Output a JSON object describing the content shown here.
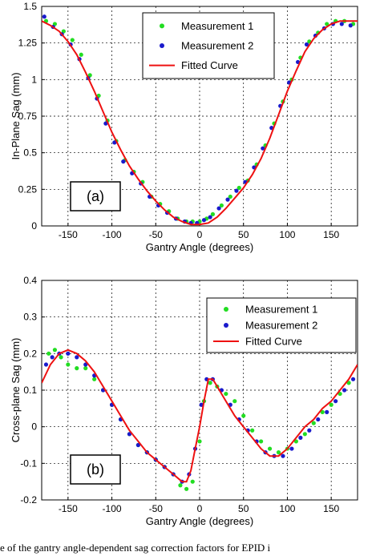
{
  "chart_data": [
    {
      "type": "scatter",
      "panel_label": "(a)",
      "xlabel": "Gantry Angle (degrees)",
      "ylabel": "In-Plane Sag (mm)",
      "xlim": [
        -180,
        180
      ],
      "ylim": [
        0,
        1.5
      ],
      "xticks": [
        -150,
        -100,
        -50,
        0,
        50,
        100,
        150
      ],
      "xtick_labels": [
        "-150",
        "-100",
        "-50",
        "0",
        "50",
        "100",
        "150"
      ],
      "yticks": [
        0,
        0.25,
        0.5,
        0.75,
        1,
        1.25,
        1.5
      ],
      "ytick_labels": [
        "0",
        "0.25",
        "0.5",
        "0.75",
        "1",
        "1.25",
        "1.5"
      ],
      "grid": true,
      "legend_position": "top-right",
      "series": [
        {
          "name": "Measurement 1",
          "color": "#22dd22",
          "marker": "dot",
          "x": [
            -175,
            -165,
            -155,
            -145,
            -135,
            -125,
            -115,
            -105,
            -95,
            -85,
            -75,
            -65,
            -55,
            -45,
            -35,
            -25,
            -15,
            -8,
            0,
            8,
            15,
            25,
            35,
            45,
            55,
            65,
            75,
            85,
            95,
            105,
            115,
            125,
            135,
            145,
            155,
            165,
            175
          ],
          "y": [
            1.4,
            1.38,
            1.33,
            1.27,
            1.17,
            1.03,
            0.89,
            0.72,
            0.58,
            0.45,
            0.37,
            0.3,
            0.2,
            0.15,
            0.1,
            0.05,
            0.03,
            0.03,
            0.03,
            0.05,
            0.08,
            0.14,
            0.2,
            0.26,
            0.31,
            0.42,
            0.55,
            0.7,
            0.85,
            1.0,
            1.15,
            1.26,
            1.32,
            1.38,
            1.4,
            1.4,
            1.38
          ]
        },
        {
          "name": "Measurement 2",
          "color": "#1a1acc",
          "marker": "dot",
          "x": [
            -177,
            -167,
            -157,
            -147,
            -137,
            -127,
            -117,
            -107,
            -97,
            -87,
            -77,
            -67,
            -57,
            -47,
            -37,
            -27,
            -17,
            -10,
            -3,
            5,
            12,
            22,
            32,
            42,
            52,
            62,
            72,
            82,
            92,
            102,
            112,
            122,
            132,
            142,
            152,
            162,
            172
          ],
          "y": [
            1.43,
            1.36,
            1.31,
            1.24,
            1.14,
            1.01,
            0.87,
            0.7,
            0.57,
            0.44,
            0.36,
            0.29,
            0.2,
            0.14,
            0.09,
            0.05,
            0.03,
            0.02,
            0.02,
            0.04,
            0.06,
            0.12,
            0.18,
            0.24,
            0.3,
            0.4,
            0.53,
            0.67,
            0.82,
            0.98,
            1.12,
            1.24,
            1.3,
            1.35,
            1.38,
            1.38,
            1.37
          ]
        },
        {
          "name": "Fitted Curve",
          "color": "#ee1111",
          "marker": "line",
          "x": [
            -180,
            -170,
            -160,
            -150,
            -140,
            -130,
            -120,
            -110,
            -100,
            -90,
            -80,
            -70,
            -60,
            -50,
            -40,
            -30,
            -20,
            -10,
            0,
            10,
            20,
            30,
            40,
            50,
            60,
            70,
            80,
            90,
            100,
            110,
            120,
            130,
            140,
            150,
            160,
            170,
            180
          ],
          "y": [
            1.4,
            1.37,
            1.33,
            1.26,
            1.17,
            1.05,
            0.92,
            0.78,
            0.64,
            0.52,
            0.41,
            0.32,
            0.24,
            0.17,
            0.11,
            0.06,
            0.03,
            0.01,
            0.01,
            0.02,
            0.06,
            0.12,
            0.19,
            0.26,
            0.35,
            0.46,
            0.6,
            0.76,
            0.92,
            1.06,
            1.19,
            1.28,
            1.34,
            1.38,
            1.4,
            1.4,
            1.4
          ]
        }
      ]
    },
    {
      "type": "scatter",
      "panel_label": "(b)",
      "xlabel": "Gantry Angle (degrees)",
      "ylabel": "Cross-plane Sag (mm)",
      "xlim": [
        -180,
        180
      ],
      "ylim": [
        -0.2,
        0.4
      ],
      "xticks": [
        -150,
        -100,
        -50,
        0,
        50,
        100,
        150
      ],
      "xtick_labels": [
        "-150",
        "-100",
        "-50",
        "0",
        "50",
        "100",
        "150"
      ],
      "yticks": [
        -0.2,
        -0.1,
        0,
        0.1,
        0.2,
        0.3,
        0.4
      ],
      "ytick_labels": [
        "-0.2",
        "-0.1",
        "0",
        "0.1",
        "0.2",
        "0.3",
        "0.4"
      ],
      "grid": true,
      "legend_position": "top-right",
      "series": [
        {
          "name": "Measurement 1",
          "color": "#22dd22",
          "marker": "dot",
          "x": [
            -172,
            -165,
            -158,
            -150,
            -140,
            -130,
            -120,
            -110,
            -100,
            -90,
            -80,
            -70,
            -60,
            -50,
            -40,
            -30,
            -22,
            -15,
            -8,
            0,
            5,
            12,
            20,
            30,
            40,
            50,
            60,
            70,
            80,
            90,
            100,
            110,
            120,
            130,
            140,
            150,
            160,
            170
          ],
          "y": [
            0.2,
            0.21,
            0.19,
            0.17,
            0.16,
            0.16,
            0.13,
            0.1,
            0.06,
            0.02,
            -0.02,
            -0.05,
            -0.07,
            -0.09,
            -0.11,
            -0.13,
            -0.16,
            -0.17,
            -0.15,
            -0.04,
            0.07,
            0.12,
            0.11,
            0.09,
            0.07,
            0.03,
            -0.01,
            -0.04,
            -0.06,
            -0.07,
            -0.06,
            -0.04,
            -0.02,
            0.01,
            0.04,
            0.06,
            0.09,
            0.12
          ]
        },
        {
          "name": "Measurement 2",
          "color": "#1a1acc",
          "marker": "dot",
          "x": [
            -175,
            -168,
            -160,
            -150,
            -140,
            -130,
            -120,
            -110,
            -100,
            -90,
            -80,
            -70,
            -60,
            -50,
            -40,
            -30,
            -20,
            -12,
            -5,
            2,
            8,
            15,
            25,
            35,
            45,
            55,
            65,
            75,
            85,
            95,
            105,
            115,
            125,
            135,
            145,
            155,
            165,
            175
          ],
          "y": [
            0.17,
            0.19,
            0.2,
            0.2,
            0.19,
            0.17,
            0.14,
            0.1,
            0.06,
            0.02,
            -0.02,
            -0.05,
            -0.07,
            -0.09,
            -0.11,
            -0.13,
            -0.15,
            -0.13,
            -0.06,
            0.06,
            0.13,
            0.13,
            0.1,
            0.06,
            0.02,
            -0.01,
            -0.04,
            -0.07,
            -0.08,
            -0.08,
            -0.06,
            -0.03,
            -0.01,
            0.02,
            0.04,
            0.07,
            0.1,
            0.13
          ]
        },
        {
          "name": "Fitted Curve",
          "color": "#ee1111",
          "marker": "line",
          "x": [
            -180,
            -170,
            -160,
            -150,
            -140,
            -130,
            -120,
            -110,
            -100,
            -90,
            -80,
            -70,
            -60,
            -50,
            -40,
            -30,
            -20,
            -15,
            -10,
            -5,
            0,
            5,
            10,
            15,
            20,
            30,
            40,
            50,
            60,
            70,
            80,
            90,
            100,
            110,
            120,
            130,
            140,
            150,
            160,
            170,
            180
          ],
          "y": [
            0.12,
            0.17,
            0.2,
            0.21,
            0.2,
            0.18,
            0.15,
            0.11,
            0.07,
            0.03,
            -0.01,
            -0.04,
            -0.07,
            -0.09,
            -0.11,
            -0.13,
            -0.15,
            -0.15,
            -0.12,
            -0.06,
            0.0,
            0.07,
            0.13,
            0.13,
            0.11,
            0.07,
            0.03,
            0.0,
            -0.03,
            -0.06,
            -0.08,
            -0.08,
            -0.06,
            -0.03,
            0.0,
            0.02,
            0.05,
            0.07,
            0.1,
            0.13,
            0.17
          ]
        }
      ]
    }
  ],
  "caption": "e of the gantry angle-dependent sag correction factors for EPID i"
}
